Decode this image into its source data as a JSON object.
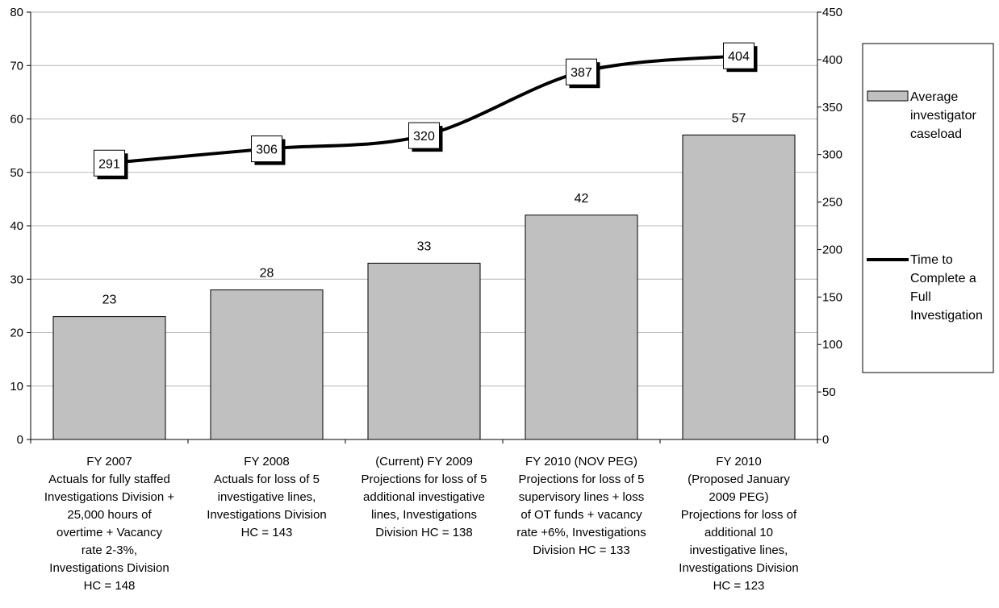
{
  "chart_data": {
    "type": "bar",
    "categories": [
      [
        "FY 2007",
        "Actuals for fully staffed",
        "Investigations Division +",
        "25,000 hours of",
        "overtime + Vacancy",
        "rate 2-3%,",
        "Investigations Division",
        "HC = 148"
      ],
      [
        "FY 2008",
        "Actuals for loss of 5",
        "investigative lines,",
        "Investigations Division",
        "HC = 143"
      ],
      [
        "(Current) FY 2009",
        "Projections for loss of 5",
        "additional investigative",
        "lines, Investigations",
        "Division HC = 138"
      ],
      [
        "FY 2010 (NOV PEG)",
        "Projections for loss of 5",
        "supervisory lines + loss",
        "of OT funds + vacancy",
        "rate +6%, Investigations",
        "Division HC = 133"
      ],
      [
        "FY 2010",
        "(Proposed January",
        "2009 PEG)",
        "Projections for loss of",
        "additional 10",
        "investigative lines,",
        "Investigations Division",
        "HC = 123"
      ]
    ],
    "series": [
      {
        "name": "Average investigator caseload",
        "type": "bar",
        "axis": "left",
        "values": [
          23,
          28,
          33,
          42,
          57
        ],
        "color": "#c0c0c0"
      },
      {
        "name": "Time to Complete a Full Investigation",
        "type": "line",
        "axis": "right",
        "values": [
          291,
          306,
          320,
          387,
          404
        ],
        "color": "#000000"
      }
    ],
    "y_left": {
      "min": 0,
      "max": 80,
      "ticks": [
        0,
        10,
        20,
        30,
        40,
        50,
        60,
        70,
        80
      ]
    },
    "y_right": {
      "min": 0,
      "max": 450,
      "ticks": [
        0,
        50,
        100,
        150,
        200,
        250,
        300,
        350,
        400,
        450
      ]
    },
    "grid": true,
    "legend": {
      "placement": "right",
      "entries": [
        {
          "lines": [
            "Average",
            "investigator",
            "caseload"
          ],
          "swatch": "bar"
        },
        {
          "lines": [
            "Time to",
            "Complete a",
            "Full",
            "Investigation"
          ],
          "swatch": "line"
        }
      ]
    }
  }
}
